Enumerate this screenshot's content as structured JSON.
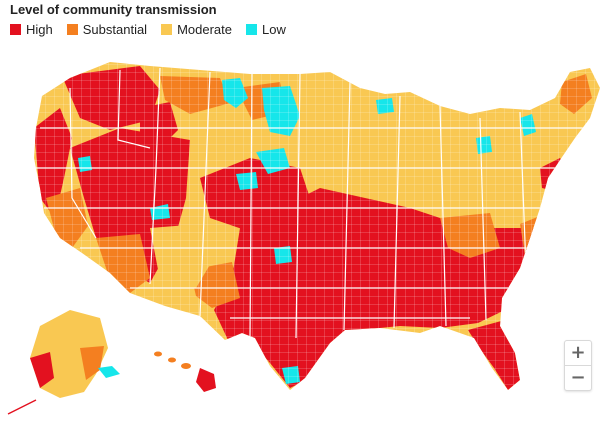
{
  "header": {
    "title": "Level of community transmission"
  },
  "legend": [
    {
      "label": "High",
      "color": "#e3111f"
    },
    {
      "label": "Substantial",
      "color": "#f47f20"
    },
    {
      "label": "Moderate",
      "color": "#f9c852"
    },
    {
      "label": "Low",
      "color": "#16e6ea"
    }
  ],
  "colors": {
    "county_border": "#ffffff",
    "state_border": "#ffffff"
  },
  "controls": {
    "zoom_in_label": "+",
    "zoom_out_label": "−"
  }
}
